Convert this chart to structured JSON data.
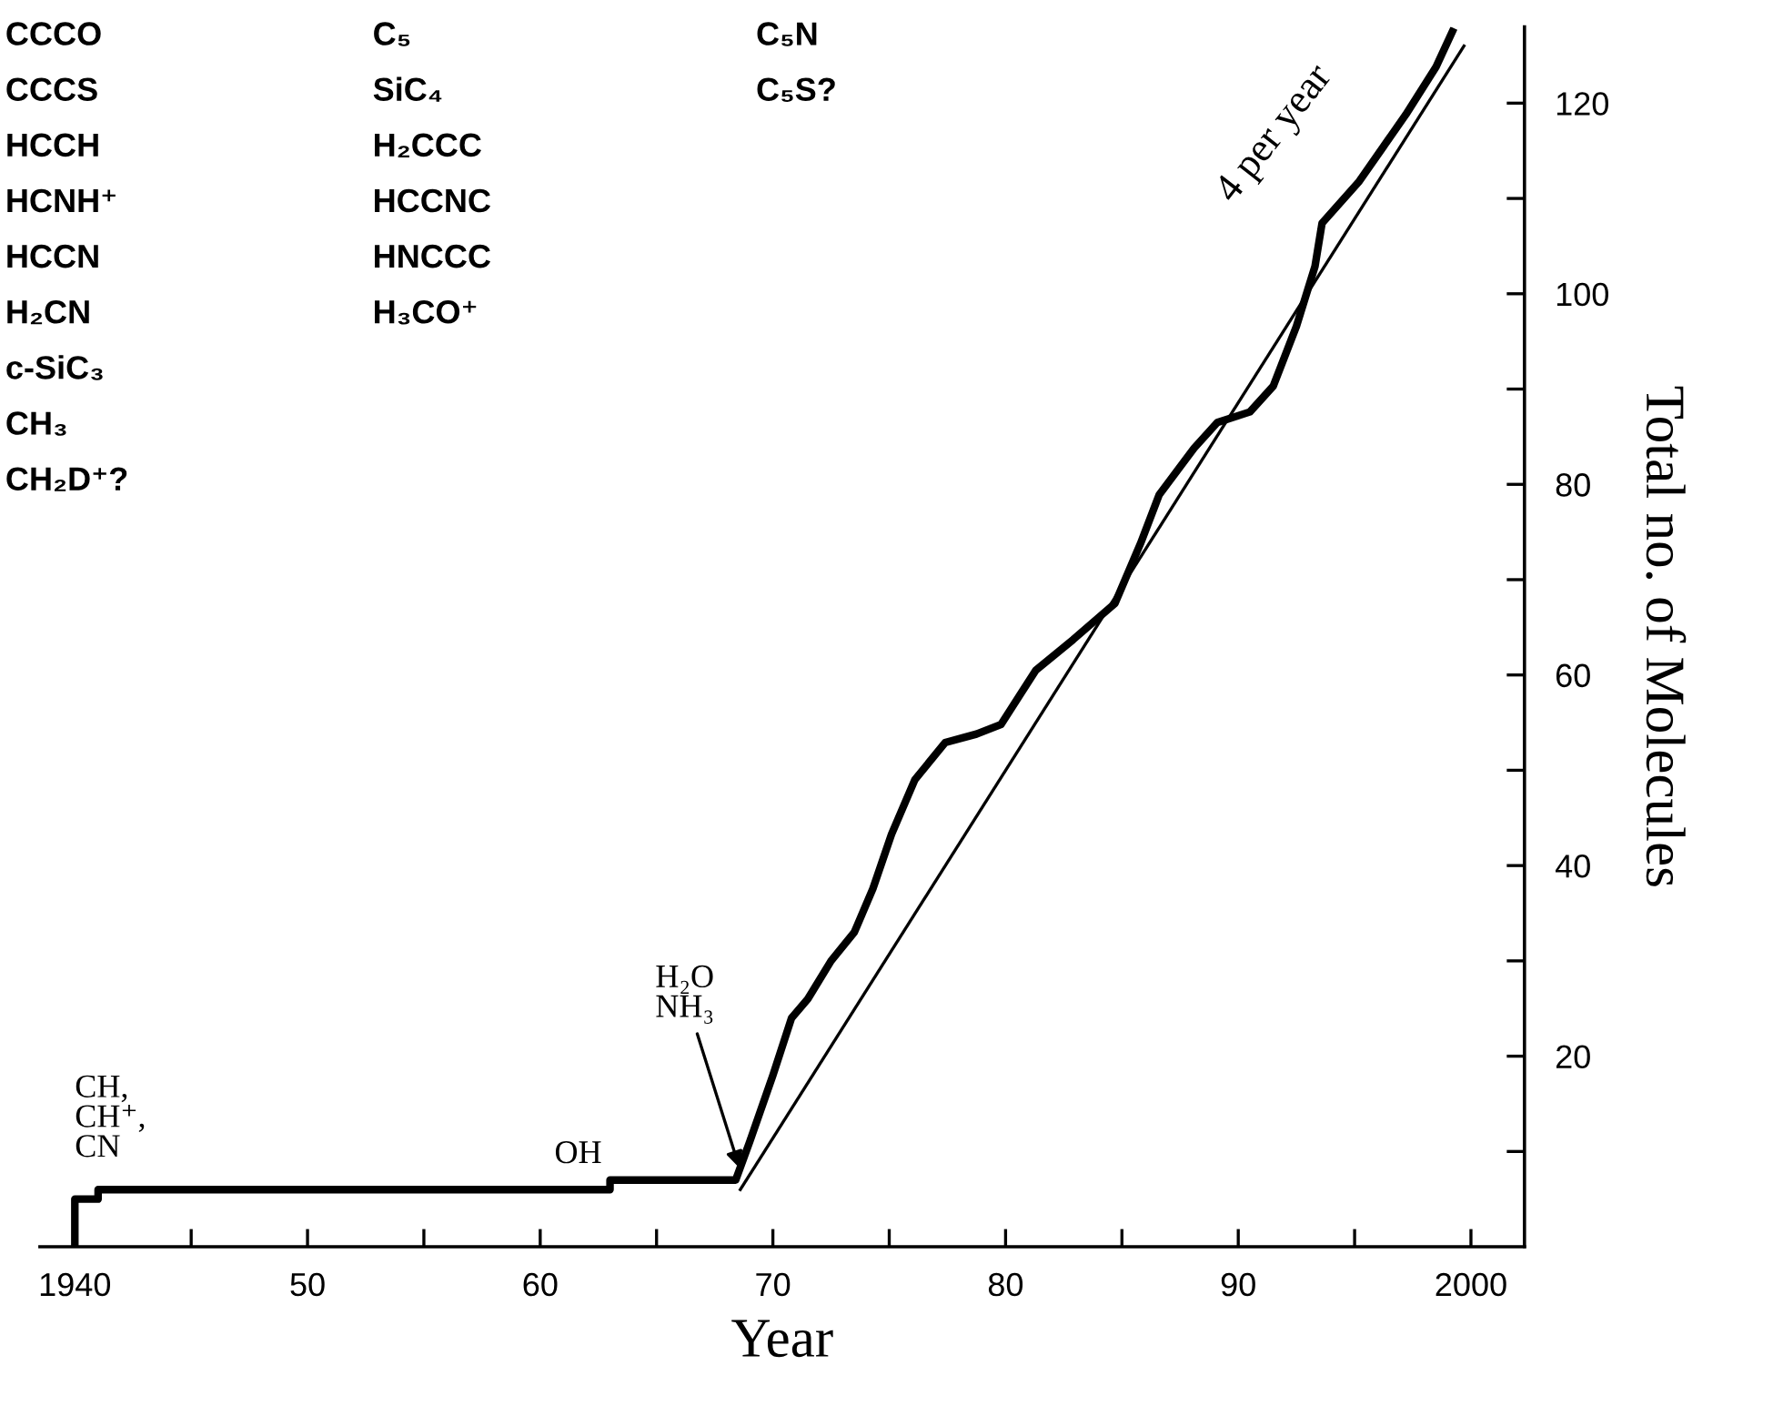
{
  "chart_data": {
    "type": "line",
    "xlabel": "Year",
    "ylabel": "Total no. of Molecules",
    "series": [
      {
        "color": "#000000",
        "x": [
          1940,
          1940,
          1941,
          1941,
          1963,
          1963,
          1968.4,
          1969,
          1970,
          1970.8,
          1971.5,
          1972.5,
          1973.5,
          1974.3,
          1975.1,
          1976.1,
          1977.4,
          1978.75,
          1979.8,
          1981.3,
          1982.9,
          1984.7,
          1985.8,
          1986.6,
          1988.1,
          1989.1,
          1990.5,
          1991.5,
          1992.5,
          1993.3,
          1993.6,
          1995.2,
          1997.2,
          1998.5,
          1999.2
        ],
        "values": [
          0,
          5,
          5,
          6,
          6,
          7,
          7,
          11,
          18,
          24,
          26,
          30,
          33,
          37.6,
          43.3,
          49,
          52.9,
          53.8,
          54.8,
          60.5,
          63.7,
          67.5,
          73.8,
          78.9,
          83.8,
          86.5,
          87.6,
          90.3,
          96.6,
          102.9,
          107.4,
          111.8,
          118.8,
          123.8,
          127.5
        ]
      },
      {
        "color": "#000000",
        "x": [
          1968.6,
          1999.7
        ],
        "values": [
          6,
          126
        ]
      }
    ],
    "xlim": [
      1938.5,
      2002.3
    ],
    "ylim": [
      0,
      128
    ],
    "xticks": [
      {
        "value": 1940,
        "label": "1940"
      },
      {
        "value": 1945,
        "label": null
      },
      {
        "value": 1950,
        "label": "50"
      },
      {
        "value": 1955,
        "label": null
      },
      {
        "value": 1960,
        "label": "60"
      },
      {
        "value": 1965,
        "label": null
      },
      {
        "value": 1970,
        "label": "70"
      },
      {
        "value": 1975,
        "label": null
      },
      {
        "value": 1980,
        "label": "80"
      },
      {
        "value": 1985,
        "label": null
      },
      {
        "value": 1990,
        "label": "90"
      },
      {
        "value": 1995,
        "label": null
      },
      {
        "value": 2000,
        "label": "2000"
      }
    ],
    "yticks": [
      {
        "value": 10,
        "label": null
      },
      20,
      {
        "value": 30,
        "label": null
      },
      40,
      {
        "value": 50,
        "label": null
      },
      60,
      {
        "value": 70,
        "label": null
      },
      80,
      {
        "value": 90,
        "label": null
      },
      100,
      {
        "value": 110,
        "label": null
      },
      120
    ],
    "grid": false,
    "legend": false,
    "marker": "none",
    "line_style": "solid",
    "annotations": [
      "CCCO\nCCCS\nHCCH\nHCNH⁺\nHCCN\nH₂CN\nc-SiC₃\nCH₃\nCH₂D⁺?",
      "C₅\nSiC₄\nH₂CCC\nHCCNC\nHNCCC\nH₃CO⁺",
      "C₅N\nC₅S?",
      "4 per year",
      {
        "text": "CH,\nCH⁺,\nCN",
        "x": 1940,
        "y": 5
      },
      {
        "text": "OH",
        "x": 1963,
        "y": 7
      },
      {
        "text": "H₂O\nNH₃",
        "x": 1968.6,
        "y": 8
      }
    ]
  }
}
